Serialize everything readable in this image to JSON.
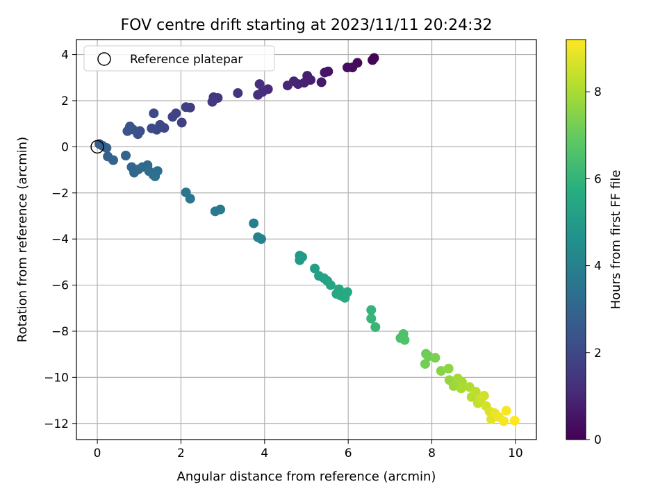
{
  "chart_data": {
    "type": "scatter",
    "title": "FOV centre drift starting at 2023/11/11 20:24:32",
    "xlabel": "Angular distance from reference (arcmin)",
    "ylabel": "Rotation from reference (arcmin)",
    "xlim": [
      -0.5,
      10.5
    ],
    "ylim": [
      -12.7,
      4.65
    ],
    "xticks": [
      "0",
      "2",
      "4",
      "6",
      "8",
      "10"
    ],
    "yticks": [
      "4",
      "2",
      "0",
      "−2",
      "−4",
      "−6",
      "−8",
      "−10",
      "−12"
    ],
    "grid": true,
    "legend": {
      "position": "top-left",
      "entries": [
        "Reference platepar"
      ]
    },
    "reference_point": {
      "x": 0,
      "y": 0,
      "label": "Reference platepar"
    },
    "colorbar": {
      "label": "Hours from first FF file",
      "colormap": "viridis",
      "range": [
        0,
        9.2
      ],
      "ticks": [
        "0",
        "2",
        "4",
        "6",
        "8"
      ]
    },
    "points": [
      {
        "x": 6.62,
        "y": 3.85,
        "hours": 0.05
      },
      {
        "x": 6.58,
        "y": 3.76,
        "hours": 0.1
      },
      {
        "x": 6.22,
        "y": 3.64,
        "hours": 0.2
      },
      {
        "x": 6.1,
        "y": 3.44,
        "hours": 0.3
      },
      {
        "x": 5.98,
        "y": 3.44,
        "hours": 0.35
      },
      {
        "x": 5.52,
        "y": 3.27,
        "hours": 0.5
      },
      {
        "x": 5.44,
        "y": 3.22,
        "hours": 0.55
      },
      {
        "x": 5.36,
        "y": 2.8,
        "hours": 0.65
      },
      {
        "x": 5.1,
        "y": 2.9,
        "hours": 0.75
      },
      {
        "x": 5.02,
        "y": 3.08,
        "hours": 0.8
      },
      {
        "x": 4.95,
        "y": 2.78,
        "hours": 0.85
      },
      {
        "x": 4.8,
        "y": 2.72,
        "hours": 0.9
      },
      {
        "x": 4.7,
        "y": 2.84,
        "hours": 0.95
      },
      {
        "x": 4.55,
        "y": 2.66,
        "hours": 1.0
      },
      {
        "x": 4.08,
        "y": 2.5,
        "hours": 1.1
      },
      {
        "x": 3.95,
        "y": 2.38,
        "hours": 1.15
      },
      {
        "x": 3.88,
        "y": 2.72,
        "hours": 1.2
      },
      {
        "x": 3.84,
        "y": 2.25,
        "hours": 1.25
      },
      {
        "x": 3.36,
        "y": 2.33,
        "hours": 1.35
      },
      {
        "x": 2.88,
        "y": 2.12,
        "hours": 1.45
      },
      {
        "x": 2.78,
        "y": 2.15,
        "hours": 1.5
      },
      {
        "x": 2.75,
        "y": 1.95,
        "hours": 1.55
      },
      {
        "x": 2.22,
        "y": 1.7,
        "hours": 1.65
      },
      {
        "x": 2.12,
        "y": 1.72,
        "hours": 1.7
      },
      {
        "x": 2.02,
        "y": 1.05,
        "hours": 1.75
      },
      {
        "x": 1.88,
        "y": 1.45,
        "hours": 1.8
      },
      {
        "x": 1.8,
        "y": 1.3,
        "hours": 1.85
      },
      {
        "x": 1.6,
        "y": 0.82,
        "hours": 1.9
      },
      {
        "x": 1.5,
        "y": 0.95,
        "hours": 1.95
      },
      {
        "x": 1.42,
        "y": 0.74,
        "hours": 2.0
      },
      {
        "x": 1.35,
        "y": 1.45,
        "hours": 2.05
      },
      {
        "x": 1.3,
        "y": 0.8,
        "hours": 2.1
      },
      {
        "x": 1.02,
        "y": 0.68,
        "hours": 2.2
      },
      {
        "x": 0.97,
        "y": 0.55,
        "hours": 2.25
      },
      {
        "x": 0.85,
        "y": 0.75,
        "hours": 2.3
      },
      {
        "x": 0.78,
        "y": 0.88,
        "hours": 2.35
      },
      {
        "x": 0.72,
        "y": 0.68,
        "hours": 2.4
      },
      {
        "x": 0.05,
        "y": 0.12,
        "hours": 2.7
      },
      {
        "x": 0.12,
        "y": 0.05,
        "hours": 2.75
      },
      {
        "x": 0.22,
        "y": -0.05,
        "hours": 2.8
      },
      {
        "x": 0.25,
        "y": -0.42,
        "hours": 2.85
      },
      {
        "x": 0.38,
        "y": -0.58,
        "hours": 2.9
      },
      {
        "x": 0.68,
        "y": -0.38,
        "hours": 2.95
      },
      {
        "x": 0.82,
        "y": -0.88,
        "hours": 3.0
      },
      {
        "x": 0.88,
        "y": -1.12,
        "hours": 3.05
      },
      {
        "x": 0.98,
        "y": -0.98,
        "hours": 3.1
      },
      {
        "x": 1.08,
        "y": -0.88,
        "hours": 3.15
      },
      {
        "x": 1.2,
        "y": -0.8,
        "hours": 3.2
      },
      {
        "x": 1.24,
        "y": -1.06,
        "hours": 3.25
      },
      {
        "x": 1.34,
        "y": -1.22,
        "hours": 3.3
      },
      {
        "x": 1.44,
        "y": -1.05,
        "hours": 3.35
      },
      {
        "x": 1.38,
        "y": -1.28,
        "hours": 3.4
      },
      {
        "x": 2.12,
        "y": -1.98,
        "hours": 3.55
      },
      {
        "x": 2.22,
        "y": -2.25,
        "hours": 3.6
      },
      {
        "x": 2.82,
        "y": -2.8,
        "hours": 3.7
      },
      {
        "x": 2.94,
        "y": -2.72,
        "hours": 3.75
      },
      {
        "x": 3.74,
        "y": -3.32,
        "hours": 3.95
      },
      {
        "x": 3.84,
        "y": -3.92,
        "hours": 4.0
      },
      {
        "x": 3.92,
        "y": -4.0,
        "hours": 4.05
      },
      {
        "x": 4.84,
        "y": -4.72,
        "hours": 4.9
      },
      {
        "x": 4.9,
        "y": -4.78,
        "hours": 4.95
      },
      {
        "x": 4.84,
        "y": -4.92,
        "hours": 5.0
      },
      {
        "x": 5.2,
        "y": -5.28,
        "hours": 5.1
      },
      {
        "x": 5.3,
        "y": -5.6,
        "hours": 5.2
      },
      {
        "x": 5.42,
        "y": -5.7,
        "hours": 5.25
      },
      {
        "x": 5.5,
        "y": -5.82,
        "hours": 5.3
      },
      {
        "x": 5.58,
        "y": -6.0,
        "hours": 5.35
      },
      {
        "x": 5.78,
        "y": -6.18,
        "hours": 5.45
      },
      {
        "x": 5.82,
        "y": -6.45,
        "hours": 5.5
      },
      {
        "x": 5.92,
        "y": -6.55,
        "hours": 5.55
      },
      {
        "x": 5.98,
        "y": -6.3,
        "hours": 5.6
      },
      {
        "x": 5.72,
        "y": -6.38,
        "hours": 5.5
      },
      {
        "x": 6.55,
        "y": -7.08,
        "hours": 6.0
      },
      {
        "x": 6.55,
        "y": -7.45,
        "hours": 6.05
      },
      {
        "x": 6.65,
        "y": -7.82,
        "hours": 6.1
      },
      {
        "x": 7.25,
        "y": -8.3,
        "hours": 6.5
      },
      {
        "x": 7.32,
        "y": -8.12,
        "hours": 6.55
      },
      {
        "x": 7.35,
        "y": -8.38,
        "hours": 6.6
      },
      {
        "x": 7.86,
        "y": -8.98,
        "hours": 7.1
      },
      {
        "x": 7.92,
        "y": -9.1,
        "hours": 7.15
      },
      {
        "x": 7.84,
        "y": -9.42,
        "hours": 7.2
      },
      {
        "x": 8.08,
        "y": -9.15,
        "hours": 7.3
      },
      {
        "x": 8.22,
        "y": -9.72,
        "hours": 7.5
      },
      {
        "x": 8.4,
        "y": -9.62,
        "hours": 7.6
      },
      {
        "x": 8.42,
        "y": -10.12,
        "hours": 7.7
      },
      {
        "x": 8.52,
        "y": -10.38,
        "hours": 7.8
      },
      {
        "x": 8.62,
        "y": -10.05,
        "hours": 7.9
      },
      {
        "x": 8.72,
        "y": -10.2,
        "hours": 7.95
      },
      {
        "x": 8.7,
        "y": -10.48,
        "hours": 8.0
      },
      {
        "x": 8.9,
        "y": -10.42,
        "hours": 8.1
      },
      {
        "x": 8.95,
        "y": -10.85,
        "hours": 8.2
      },
      {
        "x": 9.05,
        "y": -10.62,
        "hours": 8.3
      },
      {
        "x": 9.1,
        "y": -11.12,
        "hours": 8.4
      },
      {
        "x": 9.18,
        "y": -10.92,
        "hours": 8.5
      },
      {
        "x": 9.25,
        "y": -10.8,
        "hours": 8.55
      },
      {
        "x": 9.3,
        "y": -11.25,
        "hours": 8.6
      },
      {
        "x": 9.38,
        "y": -11.48,
        "hours": 8.7
      },
      {
        "x": 9.42,
        "y": -11.82,
        "hours": 8.8
      },
      {
        "x": 9.5,
        "y": -11.55,
        "hours": 8.9
      },
      {
        "x": 9.6,
        "y": -11.72,
        "hours": 9.0
      },
      {
        "x": 9.72,
        "y": -11.9,
        "hours": 9.05
      },
      {
        "x": 9.78,
        "y": -11.45,
        "hours": 9.1
      },
      {
        "x": 9.98,
        "y": -11.88,
        "hours": 9.2
      }
    ]
  }
}
